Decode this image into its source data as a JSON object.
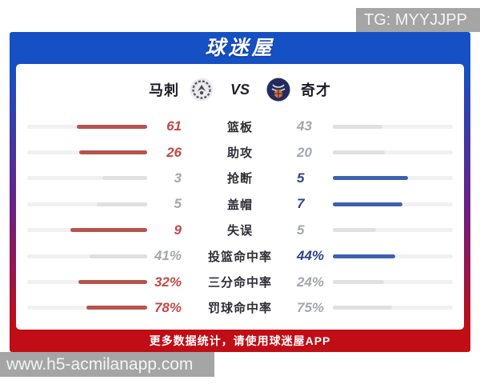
{
  "watermarks": {
    "top": "TG: MYYJJPP",
    "bottom": "www.h5-acmilanapp.com"
  },
  "header": {
    "app_title": "球迷屋"
  },
  "match": {
    "home": {
      "name": "马刺",
      "logo": "spurs-logo"
    },
    "vs_label": "VS",
    "away": {
      "name": "奇才",
      "logo": "wizards-logo"
    }
  },
  "stats": {
    "rows": [
      {
        "label": "篮板",
        "left": "61",
        "right": "43",
        "left_value": 61,
        "right_value": 43,
        "winner": "left"
      },
      {
        "label": "助攻",
        "left": "26",
        "right": "20",
        "left_value": 26,
        "right_value": 20,
        "winner": "left"
      },
      {
        "label": "抢断",
        "left": "3",
        "right": "5",
        "left_value": 3,
        "right_value": 5,
        "winner": "right"
      },
      {
        "label": "盖帽",
        "left": "5",
        "right": "7",
        "left_value": 5,
        "right_value": 7,
        "winner": "right"
      },
      {
        "label": "失误",
        "left": "9",
        "right": "5",
        "left_value": 9,
        "right_value": 5,
        "winner": "left"
      },
      {
        "label": "投篮命中率",
        "left": "41%",
        "right": "44%",
        "left_value": 41,
        "right_value": 44,
        "winner": "right"
      },
      {
        "label": "三分命中率",
        "left": "32%",
        "right": "24%",
        "left_value": 32,
        "right_value": 24,
        "winner": "left"
      },
      {
        "label": "罚球命中率",
        "left": "78%",
        "right": "75%",
        "left_value": 78,
        "right_value": 75,
        "winner": "left"
      }
    ]
  },
  "footer": {
    "promo_text": "更多数据统计，请使用球迷屋APP"
  },
  "colors": {
    "frame_blue": "#1551c4",
    "frame_red": "#c00d16",
    "home_bar_red": "#b6544e",
    "away_bar_blue": "#3d61ae",
    "home_value_red": "#c24845",
    "away_value_navy": "#2b4685",
    "loser_gray": "#a3a7ad",
    "track_gray": "#f1f1f3",
    "loser_fill_gray": "#e0e0e3",
    "watermark_gray": "#a5a5a5"
  }
}
